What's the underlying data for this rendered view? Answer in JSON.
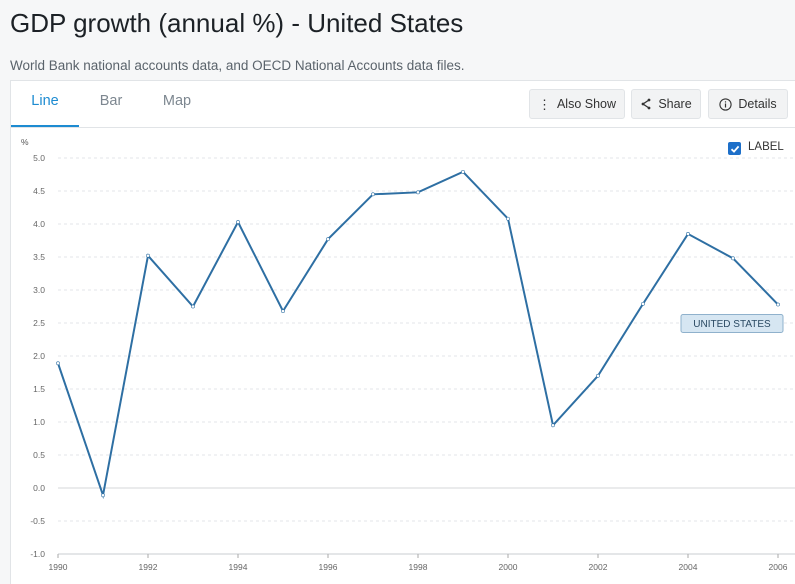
{
  "header": {
    "title": "GDP growth (annual %) - United States",
    "subtitle": "World Bank national accounts data, and OECD National Accounts data files."
  },
  "tabs": [
    {
      "label": "Line",
      "active": true
    },
    {
      "label": "Bar",
      "active": false
    },
    {
      "label": "Map",
      "active": false
    }
  ],
  "toolbar": {
    "also_show_label": "Also Show",
    "share_label": "Share",
    "details_label": "Details"
  },
  "label_toggle": {
    "label": "LABEL",
    "checked": true
  },
  "colors": {
    "line": "#2e6fa3",
    "accent": "#1d8bd1",
    "series_label_bg": "#d6e6f2"
  },
  "chart_data": {
    "type": "line",
    "title": "GDP growth (annual %) - United States",
    "ylabel": "%",
    "xlabel": "",
    "ylim": [
      -1.0,
      5.0
    ],
    "xlim": [
      1990,
      2006
    ],
    "y_ticks": [
      "5.0",
      "4.5",
      "4.0",
      "3.5",
      "3.0",
      "2.5",
      "2.0",
      "1.5",
      "1.0",
      "0.5",
      "0.0",
      "-0.5",
      "-1.0"
    ],
    "x_ticks": [
      "1990",
      "1992",
      "1994",
      "1996",
      "1998",
      "2000",
      "2002",
      "2004",
      "2006"
    ],
    "grid": true,
    "series": [
      {
        "name": "UNITED STATES",
        "x": [
          1990,
          1991,
          1992,
          1993,
          1994,
          1995,
          1996,
          1997,
          1998,
          1999,
          2000,
          2001,
          2002,
          2003,
          2004,
          2005,
          2006
        ],
        "values": [
          1.89,
          -0.11,
          3.52,
          2.75,
          4.03,
          2.68,
          3.77,
          4.45,
          4.48,
          4.79,
          4.08,
          0.95,
          1.7,
          2.79,
          3.85,
          3.48,
          2.78
        ]
      }
    ]
  }
}
